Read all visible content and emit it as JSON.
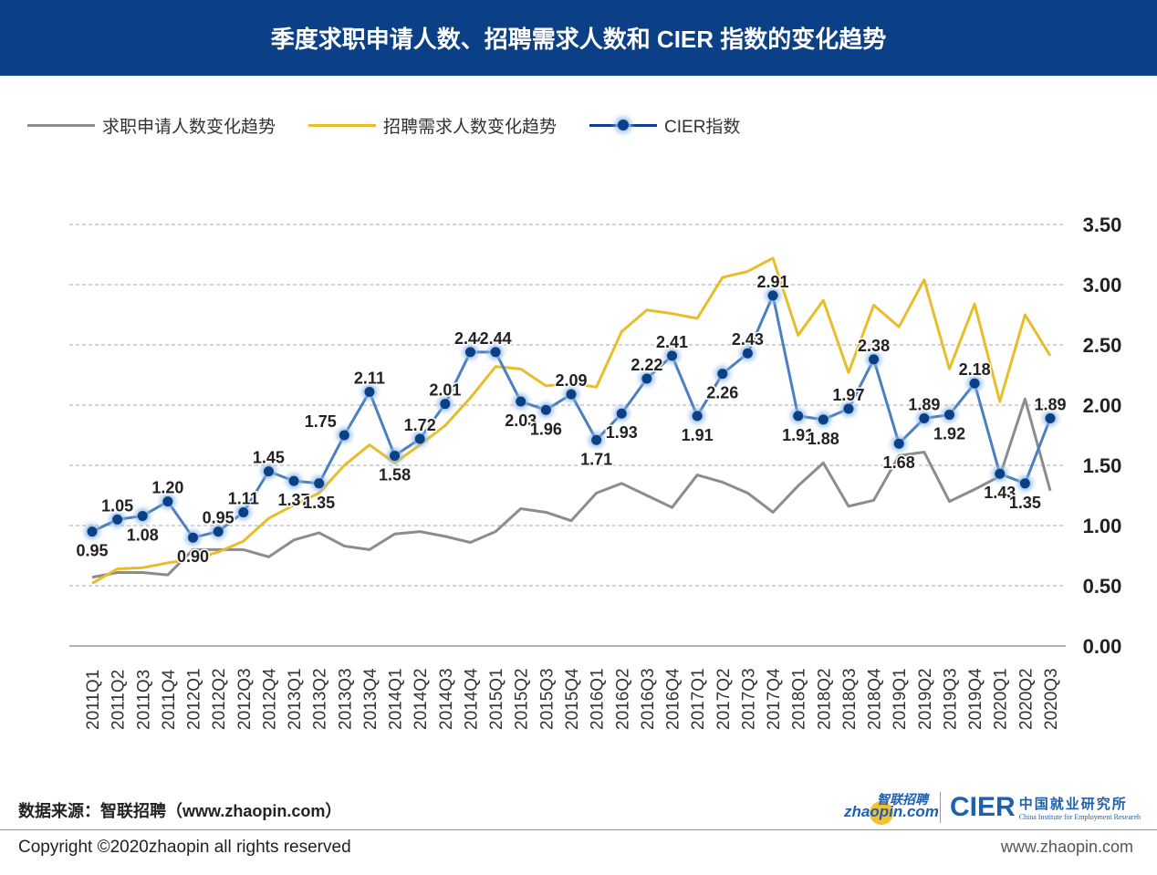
{
  "header": {
    "title": "季度求职申请人数、招聘需求人数和 CIER 指数的变化趋势"
  },
  "chart_data": {
    "type": "line",
    "title": "季度求职申请人数、招聘需求人数和 CIER 指数的变化趋势",
    "categories": [
      "2011Q1",
      "2011Q2",
      "2011Q3",
      "2011Q4",
      "2012Q1",
      "2012Q2",
      "2012Q3",
      "2012Q4",
      "2013Q1",
      "2013Q2",
      "2013Q3",
      "2013Q4",
      "2014Q1",
      "2014Q2",
      "2014Q3",
      "2014Q4",
      "2015Q1",
      "2015Q2",
      "2015Q3",
      "2015Q4",
      "2016Q1",
      "2016Q2",
      "2016Q3",
      "2016Q4",
      "2017Q1",
      "2017Q2",
      "2017Q3",
      "2017Q4",
      "2018Q1",
      "2018Q2",
      "2018Q3",
      "2018Q4",
      "2019Q1",
      "2019Q2",
      "2019Q3",
      "2019Q4",
      "2020Q1",
      "2020Q2",
      "2020Q3"
    ],
    "series": [
      {
        "name": "求职申请人数变化趋势",
        "color": "#8c8c8c",
        "values": [
          0.57,
          0.61,
          0.61,
          0.59,
          0.8,
          0.8,
          0.8,
          0.74,
          0.88,
          0.94,
          0.83,
          0.8,
          0.93,
          0.95,
          0.91,
          0.86,
          0.95,
          1.14,
          1.11,
          1.04,
          1.27,
          1.35,
          1.25,
          1.15,
          1.42,
          1.36,
          1.27,
          1.11,
          1.33,
          1.52,
          1.16,
          1.21,
          1.58,
          1.61,
          1.2,
          1.3,
          1.41,
          2.05,
          1.29
        ]
      },
      {
        "name": "招聘需求人数变化趋势",
        "color": "#e8bd2a",
        "values": [
          0.52,
          0.64,
          0.65,
          0.69,
          0.72,
          0.78,
          0.87,
          1.06,
          1.17,
          1.27,
          1.5,
          1.67,
          1.52,
          1.67,
          1.83,
          2.06,
          2.32,
          2.3,
          2.16,
          2.18,
          2.15,
          2.61,
          2.79,
          2.76,
          2.72,
          3.06,
          3.11,
          3.22,
          2.58,
          2.87,
          2.27,
          2.83,
          2.65,
          3.04,
          2.3,
          2.84,
          2.03,
          2.75,
          2.41
        ]
      },
      {
        "name": "CIER指数",
        "color": "#0b3f86",
        "line_color": "#4a7fc1",
        "values": [
          0.95,
          1.05,
          1.08,
          1.2,
          0.9,
          0.95,
          1.11,
          1.45,
          1.37,
          1.35,
          1.75,
          2.11,
          1.58,
          1.72,
          2.01,
          2.44,
          2.44,
          2.03,
          1.96,
          2.09,
          1.71,
          1.93,
          2.22,
          2.41,
          1.91,
          2.26,
          2.43,
          2.91,
          1.91,
          1.88,
          1.97,
          2.38,
          1.68,
          1.89,
          1.92,
          2.18,
          1.43,
          1.35,
          1.89
        ],
        "labels": [
          "0.95",
          "1.05",
          "1.08",
          "1.20",
          "0.90",
          "0.95",
          "1.11",
          "1.45",
          "1.37",
          "1.35",
          "1.75",
          "2.11",
          "1.58",
          "1.72",
          "2.01",
          "2.44",
          "2.44",
          "2.03",
          "1.96",
          "2.09",
          "1.71",
          "1.93",
          "2.22",
          "2.41",
          "1.91",
          "2.26",
          "2.43",
          "2.91",
          "1.91",
          "1.88",
          "1.97",
          "2.38",
          "1.68",
          "1.89",
          "1.92",
          "2.18",
          "1.43",
          "1.35",
          "1.89"
        ]
      }
    ],
    "yaxis": {
      "range": [
        0,
        3.5
      ],
      "position": "right",
      "ticks": [
        "0.00",
        "0.50",
        "1.00",
        "1.50",
        "2.00",
        "2.50",
        "3.00",
        "3.50"
      ]
    },
    "grid": "dashed horizontal",
    "legend_position": "top-left"
  },
  "footer": {
    "source": "数据来源：智联招聘（www.zhaopin.com）",
    "copyright": "Copyright ©2020zhaopin all rights reserved",
    "url": "www.zhaopin.com",
    "logo_zhaopin_cn": "智联招聘",
    "logo_zhaopin_en": "zhaopin.com",
    "logo_cier": "CIER",
    "logo_cier_cn": "中国就业研究所",
    "logo_cier_en": "China Institute for Employment Researeh"
  }
}
